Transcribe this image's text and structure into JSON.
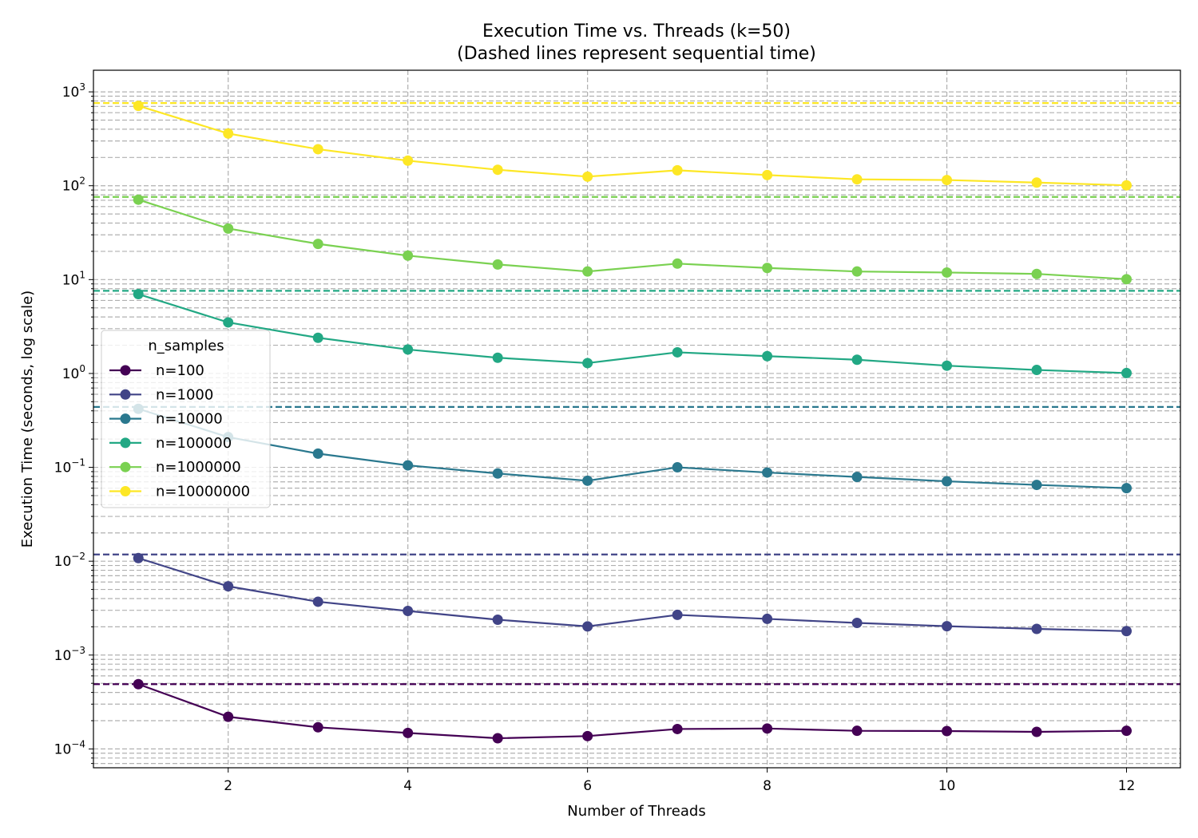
{
  "chart_data": {
    "type": "line",
    "title": "Execution Time vs. Threads (k=50)",
    "subtitle": "(Dashed lines represent sequential time)",
    "xlabel": "Number of Threads",
    "ylabel": "Execution Time (seconds, log scale)",
    "xlim": [
      0.5,
      12.6
    ],
    "ylim": [
      6.3e-05,
      1700
    ],
    "yscale": "log",
    "grid": true,
    "x_ticks": [
      2,
      4,
      6,
      8,
      10,
      12
    ],
    "x_tick_labels": [
      "2",
      "4",
      "6",
      "8",
      "10",
      "12"
    ],
    "y_ticks": [
      0.0001,
      0.001,
      0.01,
      0.1,
      1,
      10,
      100,
      1000
    ],
    "y_tick_labels": [
      {
        "base": "10",
        "exp": "−4"
      },
      {
        "base": "10",
        "exp": "−3"
      },
      {
        "base": "10",
        "exp": "−2"
      },
      {
        "base": "10",
        "exp": "−1"
      },
      {
        "base": "10",
        "exp": "0"
      },
      {
        "base": "10",
        "exp": "1"
      },
      {
        "base": "10",
        "exp": "2"
      },
      {
        "base": "10",
        "exp": "3"
      }
    ],
    "legend": {
      "title": "n_samples",
      "placement": "center-left"
    },
    "x": [
      1,
      2,
      3,
      4,
      5,
      6,
      7,
      8,
      9,
      10,
      11,
      12
    ],
    "series": [
      {
        "name": "n=100",
        "color": "#440154",
        "sequential": 0.00049,
        "values": [
          0.00049,
          0.00022,
          0.00017,
          0.000148,
          0.00013,
          0.000137,
          0.000163,
          0.000165,
          0.000156,
          0.000155,
          0.000152,
          0.000156
        ]
      },
      {
        "name": "n=1000",
        "color": "#414487",
        "sequential": 0.0118,
        "values": [
          0.0108,
          0.0054,
          0.0037,
          0.00295,
          0.00238,
          0.00202,
          0.00268,
          0.00243,
          0.0022,
          0.00203,
          0.0019,
          0.0018
        ]
      },
      {
        "name": "n=10000",
        "color": "#2a788e",
        "sequential": 0.44,
        "values": [
          0.42,
          0.21,
          0.14,
          0.105,
          0.086,
          0.072,
          0.1,
          0.088,
          0.079,
          0.071,
          0.065,
          0.06
        ]
      },
      {
        "name": "n=100000",
        "color": "#22a884",
        "sequential": 7.6,
        "values": [
          7.0,
          3.5,
          2.4,
          1.8,
          1.47,
          1.29,
          1.68,
          1.53,
          1.4,
          1.21,
          1.09,
          1.01
        ]
      },
      {
        "name": "n=1000000",
        "color": "#7ad151",
        "sequential": 76,
        "values": [
          71,
          35,
          24,
          18,
          14.5,
          12.2,
          14.8,
          13.3,
          12.2,
          11.9,
          11.5,
          10.1
        ]
      },
      {
        "name": "n=10000000",
        "color": "#fde725",
        "sequential": 760,
        "values": [
          710,
          360,
          245,
          185,
          148,
          125,
          146,
          130,
          117,
          115,
          108,
          101
        ]
      }
    ]
  }
}
